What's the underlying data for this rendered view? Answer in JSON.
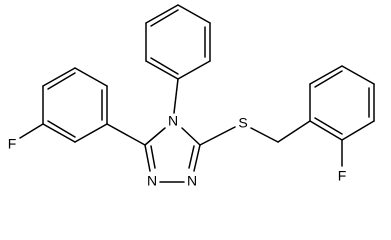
{
  "atoms": [
    {
      "label": "F"
    },
    {
      "label": "N"
    },
    {
      "label": "N"
    },
    {
      "label": "N"
    },
    {
      "label": "S"
    },
    {
      "label": "F"
    }
  ]
}
